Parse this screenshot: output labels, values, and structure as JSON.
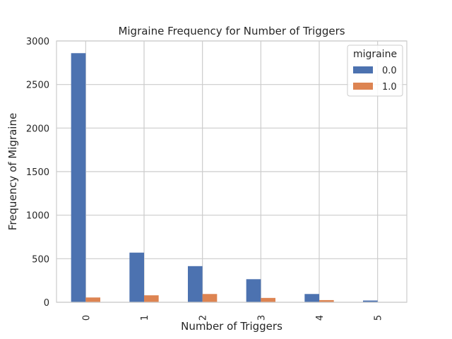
{
  "chart_data": {
    "type": "bar",
    "title": "Migraine Frequency for Number of Triggers",
    "xlabel": "Number of Triggers",
    "ylabel": "Frequency of Migraine",
    "categories": [
      "0",
      "1",
      "2",
      "3",
      "4",
      "5"
    ],
    "series": [
      {
        "name": "0.0",
        "color": "#4c72b0",
        "values": [
          2860,
          570,
          415,
          265,
          95,
          20
        ]
      },
      {
        "name": "1.0",
        "color": "#dd8452",
        "values": [
          55,
          80,
          95,
          50,
          25,
          3
        ]
      }
    ],
    "ylim": [
      0,
      3000
    ],
    "yticks": [
      0,
      500,
      1000,
      1500,
      2000,
      2500,
      3000
    ],
    "grid": true,
    "legend": {
      "title": "migraine",
      "placement": "top-right"
    }
  }
}
